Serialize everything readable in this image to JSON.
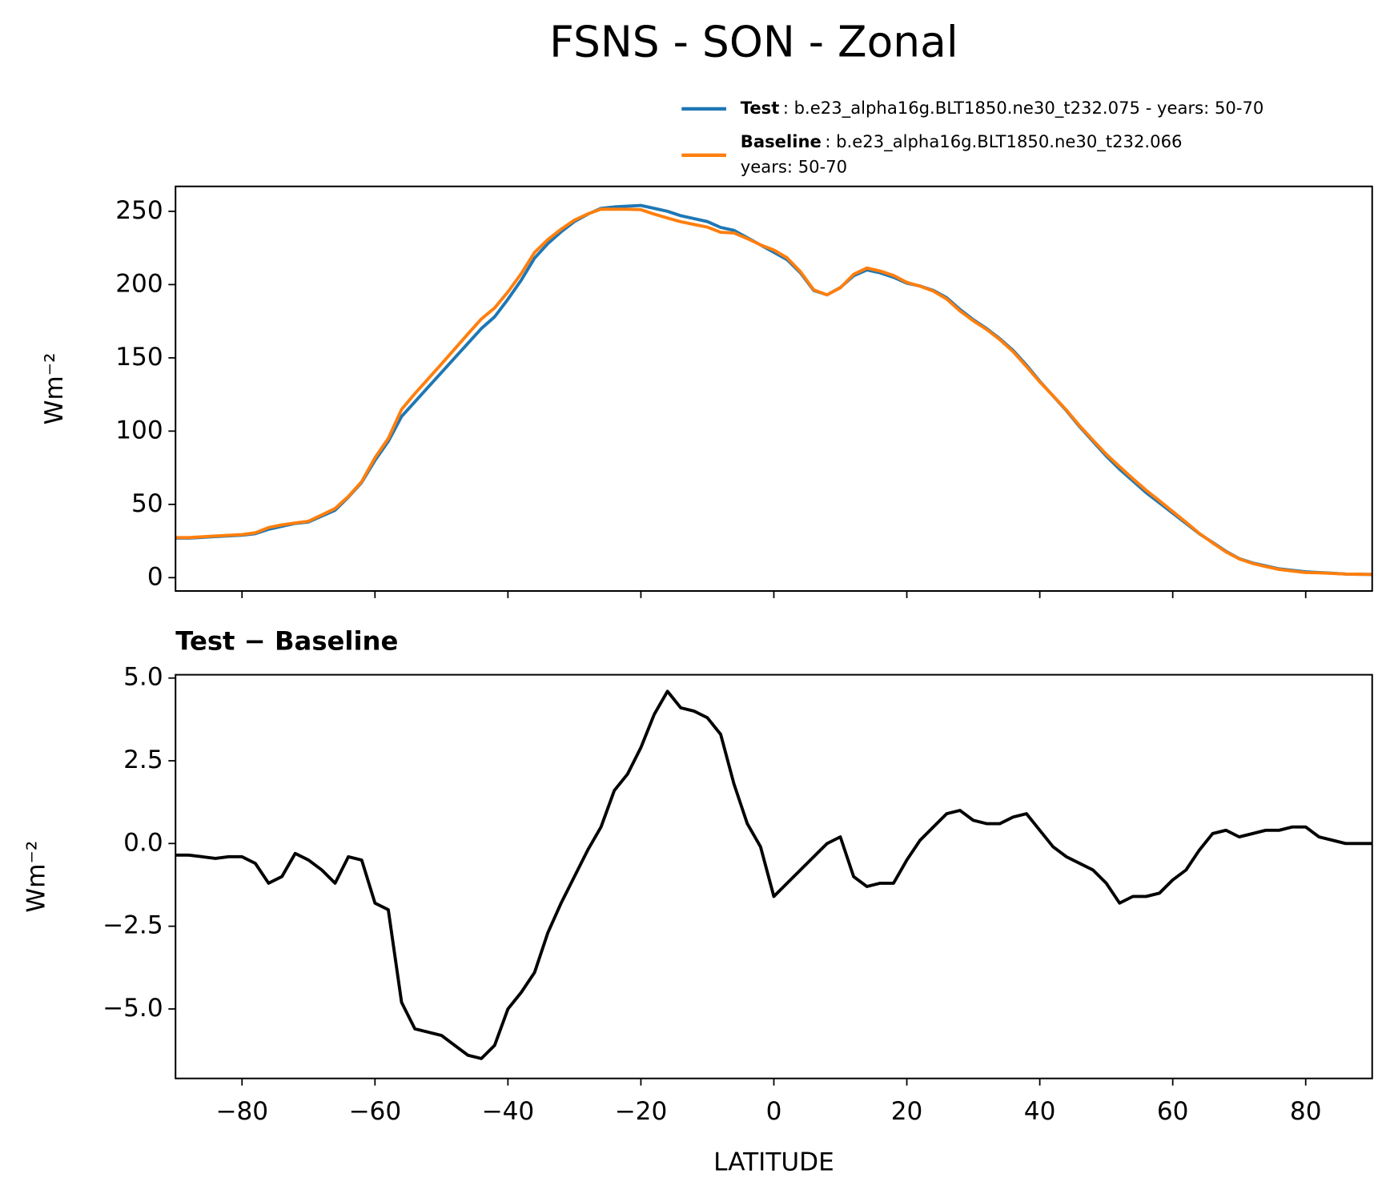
{
  "title": "FSNS - SON - Zonal",
  "chart_data": [
    {
      "type": "line",
      "ylabel": "Wm⁻²",
      "x": [
        -90,
        -88,
        -86,
        -84,
        -82,
        -80,
        -78,
        -76,
        -74,
        -72,
        -70,
        -68,
        -66,
        -64,
        -62,
        -60,
        -58,
        -56,
        -54,
        -52,
        -50,
        -48,
        -46,
        -44,
        -42,
        -40,
        -38,
        -36,
        -34,
        -32,
        -30,
        -28,
        -26,
        -24,
        -22,
        -20,
        -18,
        -16,
        -14,
        -12,
        -10,
        -8,
        -6,
        -4,
        -2,
        0,
        2,
        4,
        6,
        8,
        10,
        12,
        14,
        16,
        18,
        20,
        22,
        24,
        26,
        28,
        30,
        32,
        34,
        36,
        38,
        40,
        42,
        44,
        46,
        48,
        50,
        52,
        54,
        56,
        58,
        60,
        62,
        64,
        66,
        68,
        70,
        72,
        74,
        76,
        78,
        80,
        82,
        84,
        86,
        88,
        90
      ],
      "series": [
        {
          "name": "Test",
          "description": [
            ": b.e23_alpha16g.BLT1850.ne30_t232.075 - years: 50-70"
          ],
          "color": "#1f77b4",
          "values": [
            27,
            27,
            27.5,
            28,
            28.5,
            29,
            30,
            33,
            35,
            37,
            38,
            42,
            46,
            55,
            65,
            80,
            93,
            110,
            120,
            130,
            140,
            150,
            160,
            170,
            178,
            190,
            203,
            218,
            228,
            236,
            243,
            248,
            252,
            253,
            253.5,
            254,
            252,
            250,
            247,
            245,
            243,
            239,
            237,
            232,
            227,
            222,
            217,
            208,
            196,
            193,
            198,
            206,
            210,
            208,
            205,
            201,
            199,
            196,
            191,
            183,
            176,
            170,
            163,
            155,
            145,
            134,
            124,
            114,
            103,
            93,
            83,
            74,
            66,
            58,
            51,
            44,
            37,
            30,
            24,
            18,
            13,
            10,
            8,
            6,
            5,
            4,
            3.5,
            3,
            2.5,
            2.3,
            2.2
          ]
        },
        {
          "name": "Baseline",
          "description": [
            ": b.e23_alpha16g.BLT1850.ne30_t232.066",
            "years: 50-70"
          ],
          "color": "#ff7f0e",
          "values": [
            27.35,
            27.35,
            27.9,
            28.45,
            28.9,
            29.4,
            30.6,
            34.2,
            36,
            37.3,
            38.5,
            42.8,
            47.2,
            55.4,
            65.5,
            81.8,
            95,
            114.8,
            125.6,
            135.7,
            145.8,
            156.1,
            166.4,
            176.5,
            184.1,
            195,
            207.5,
            221.9,
            230.7,
            237.8,
            244,
            248.2,
            251.5,
            251.4,
            251.4,
            251.1,
            248.1,
            245.4,
            242.9,
            241,
            239.2,
            235.7,
            235.2,
            231.4,
            227.1,
            223.6,
            218.2,
            208.8,
            196.4,
            193,
            197.8,
            207,
            211.3,
            209.2,
            206.2,
            201.5,
            198.9,
            195.5,
            190.1,
            182,
            175.3,
            169.4,
            162.4,
            154.2,
            144.1,
            133.6,
            124.1,
            114.4,
            103.6,
            93.8,
            84.2,
            75.8,
            67.6,
            59.6,
            52.5,
            45.1,
            37.8,
            30.2,
            23.7,
            17.6,
            12.8,
            9.7,
            7.6,
            5.6,
            4.5,
            3.5,
            3.3,
            2.9,
            2.5,
            2.3,
            2.2
          ]
        }
      ],
      "xlim": [
        -90,
        90
      ],
      "xticks": [
        -80,
        -60,
        -40,
        -20,
        0,
        20,
        40,
        60,
        80
      ],
      "show_xticklabels": false,
      "ylim": [
        -9.1,
        267
      ],
      "yticks": [
        0,
        50,
        100,
        150,
        200,
        250
      ],
      "legend": "upper right"
    },
    {
      "type": "line",
      "title": "Test − Baseline",
      "ylabel": "Wm⁻²",
      "xlabel": "LATITUDE",
      "x": [
        -90,
        -88,
        -86,
        -84,
        -82,
        -80,
        -78,
        -76,
        -74,
        -72,
        -70,
        -68,
        -66,
        -64,
        -62,
        -60,
        -58,
        -56,
        -54,
        -52,
        -50,
        -48,
        -46,
        -44,
        -42,
        -40,
        -38,
        -36,
        -34,
        -32,
        -30,
        -28,
        -26,
        -24,
        -22,
        -20,
        -18,
        -16,
        -14,
        -12,
        -10,
        -8,
        -6,
        -4,
        -2,
        0,
        2,
        4,
        6,
        8,
        10,
        12,
        14,
        16,
        18,
        20,
        22,
        24,
        26,
        28,
        30,
        32,
        34,
        36,
        38,
        40,
        42,
        44,
        46,
        48,
        50,
        52,
        54,
        56,
        58,
        60,
        62,
        64,
        66,
        68,
        70,
        72,
        74,
        76,
        78,
        80,
        82,
        84,
        86,
        88,
        90
      ],
      "series": [
        {
          "color": "#000000",
          "values": [
            -0.35,
            -0.35,
            -0.4,
            -0.45,
            -0.4,
            -0.4,
            -0.6,
            -1.2,
            -1.0,
            -0.3,
            -0.5,
            -0.8,
            -1.2,
            -0.4,
            -0.5,
            -1.8,
            -2.0,
            -4.8,
            -5.6,
            -5.7,
            -5.8,
            -6.1,
            -6.4,
            -6.5,
            -6.1,
            -5.0,
            -4.5,
            -3.9,
            -2.7,
            -1.8,
            -1.0,
            -0.2,
            0.5,
            1.6,
            2.1,
            2.9,
            3.9,
            4.6,
            4.1,
            4.0,
            3.8,
            3.3,
            1.8,
            0.6,
            -0.1,
            -1.6,
            -1.2,
            -0.8,
            -0.4,
            0.0,
            0.2,
            -1.0,
            -1.3,
            -1.2,
            -1.2,
            -0.5,
            0.1,
            0.5,
            0.9,
            1.0,
            0.7,
            0.6,
            0.6,
            0.8,
            0.9,
            0.4,
            -0.1,
            -0.4,
            -0.6,
            -0.8,
            -1.2,
            -1.8,
            -1.6,
            -1.6,
            -1.5,
            -1.1,
            -0.8,
            -0.2,
            0.3,
            0.4,
            0.2,
            0.3,
            0.4,
            0.4,
            0.5,
            0.5,
            0.2,
            0.1,
            0.0,
            0.0,
            0.0
          ]
        }
      ],
      "xlim": [
        -90,
        90
      ],
      "xticks": [
        {
          "value": -80,
          "label": "−80"
        },
        {
          "value": -60,
          "label": "−60"
        },
        {
          "value": -40,
          "label": "−40"
        },
        {
          "value": -20,
          "label": "−20"
        },
        0,
        20,
        40,
        60,
        80
      ],
      "show_xticklabels": true,
      "ylim": [
        -7.1,
        5.1
      ],
      "yticks": [
        {
          "value": 5,
          "label": "5.0"
        },
        {
          "value": 2.5,
          "label": "2.5"
        },
        {
          "value": 0,
          "label": "0.0"
        },
        {
          "value": -2.5,
          "label": "−2.5"
        },
        {
          "value": -5,
          "label": "−5.0"
        }
      ]
    }
  ]
}
